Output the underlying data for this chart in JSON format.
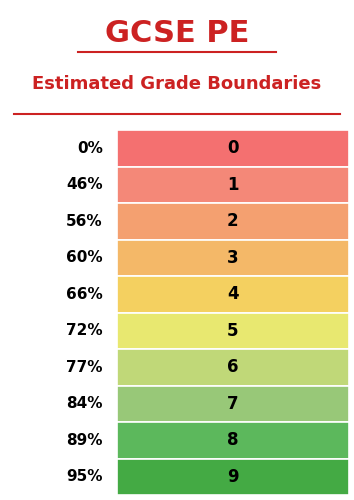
{
  "title": "GCSE PE",
  "subtitle": "Estimated Grade Boundaries",
  "grades": [
    0,
    1,
    2,
    3,
    4,
    5,
    6,
    7,
    8,
    9
  ],
  "percentages": [
    "0%",
    "46%",
    "56%",
    "60%",
    "66%",
    "72%",
    "77%",
    "84%",
    "89%",
    "95%"
  ],
  "colors": [
    "#f47070",
    "#f48878",
    "#f4a070",
    "#f4b868",
    "#f4d060",
    "#e8e870",
    "#c0d878",
    "#98c878",
    "#5cb85c",
    "#44aa44"
  ],
  "title_color": "#cc2222",
  "subtitle_color": "#cc2222",
  "bg_color": "#ffffff",
  "grade_label_color": "#000000",
  "pct_label_color": "#000000",
  "title_fontsize": 22,
  "subtitle_fontsize": 13,
  "grade_fontsize": 12,
  "pct_fontsize": 11
}
